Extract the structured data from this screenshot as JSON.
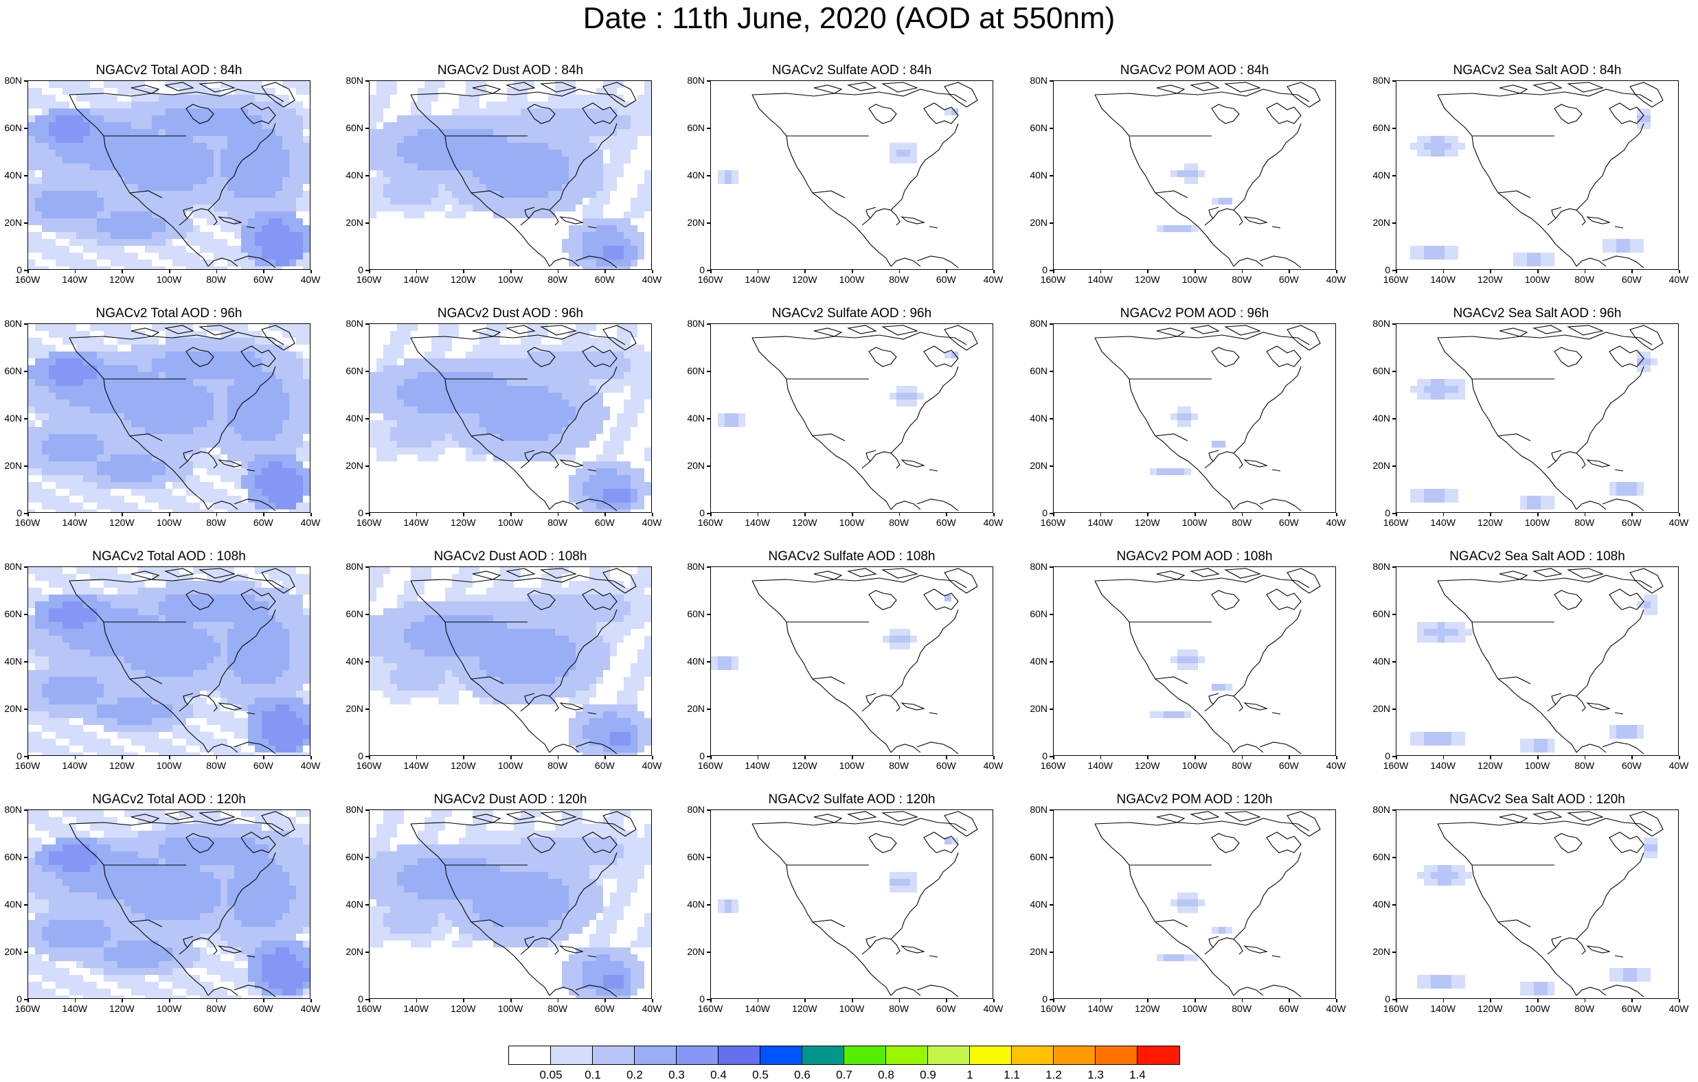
{
  "title": "Date : 11th June, 2020 (AOD at 550nm)",
  "panels": [
    {
      "title": "NGACv2 Total AOD : 84h",
      "species": "total"
    },
    {
      "title": "NGACv2 Dust AOD : 84h",
      "species": "dust"
    },
    {
      "title": "NGACv2 Sulfate AOD : 84h",
      "species": "sulfate"
    },
    {
      "title": "NGACv2 POM AOD : 84h",
      "species": "pom"
    },
    {
      "title": "NGACv2 Sea Salt AOD : 84h",
      "species": "seasalt"
    },
    {
      "title": "NGACv2 Total AOD : 96h",
      "species": "total"
    },
    {
      "title": "NGACv2 Dust AOD : 96h",
      "species": "dust"
    },
    {
      "title": "NGACv2 Sulfate AOD : 96h",
      "species": "sulfate"
    },
    {
      "title": "NGACv2 POM AOD : 96h",
      "species": "pom"
    },
    {
      "title": "NGACv2 Sea Salt AOD : 96h",
      "species": "seasalt"
    },
    {
      "title": "NGACv2 Total AOD : 108h",
      "species": "total"
    },
    {
      "title": "NGACv2 Dust AOD : 108h",
      "species": "dust"
    },
    {
      "title": "NGACv2 Sulfate AOD : 108h",
      "species": "sulfate"
    },
    {
      "title": "NGACv2 POM AOD : 108h",
      "species": "pom"
    },
    {
      "title": "NGACv2 Sea Salt AOD : 108h",
      "species": "seasalt"
    },
    {
      "title": "NGACv2 Total AOD : 120h",
      "species": "total"
    },
    {
      "title": "NGACv2 Dust AOD : 120h",
      "species": "dust"
    },
    {
      "title": "NGACv2 Sulfate AOD : 120h",
      "species": "sulfate"
    },
    {
      "title": "NGACv2 POM AOD : 120h",
      "species": "pom"
    },
    {
      "title": "NGACv2 Sea Salt  AOD : 120h",
      "species": "seasalt"
    }
  ],
  "axes": {
    "lat_labels": [
      "80N",
      "60N",
      "40N",
      "20N",
      "0"
    ],
    "lon_labels": [
      "160W",
      "140W",
      "120W",
      "100W",
      "80W",
      "60W",
      "40W"
    ]
  },
  "colorbar": {
    "colors": [
      "#ffffff",
      "#d4ddfb",
      "#b7c5f7",
      "#98aef5",
      "#8597f5",
      "#6371ee",
      "#0055ff",
      "#00968d",
      "#55ee00",
      "#99f500",
      "#c5f549",
      "#fbfb00",
      "#fdc200",
      "#ff9a00",
      "#ff7200",
      "#ff1a00"
    ],
    "labels": [
      "0.05",
      "0.1",
      "0.2",
      "0.3",
      "0.4",
      "0.5",
      "0.6",
      "0.7",
      "0.8",
      "0.9",
      "1",
      "1.1",
      "1.2",
      "1.3",
      "1.4"
    ]
  },
  "map_colors": {
    "land_outline": "#000000",
    "level1": "#d4ddfb",
    "level2": "#b7c5f7",
    "level3": "#98aef5",
    "level4": "#8597f5"
  }
}
